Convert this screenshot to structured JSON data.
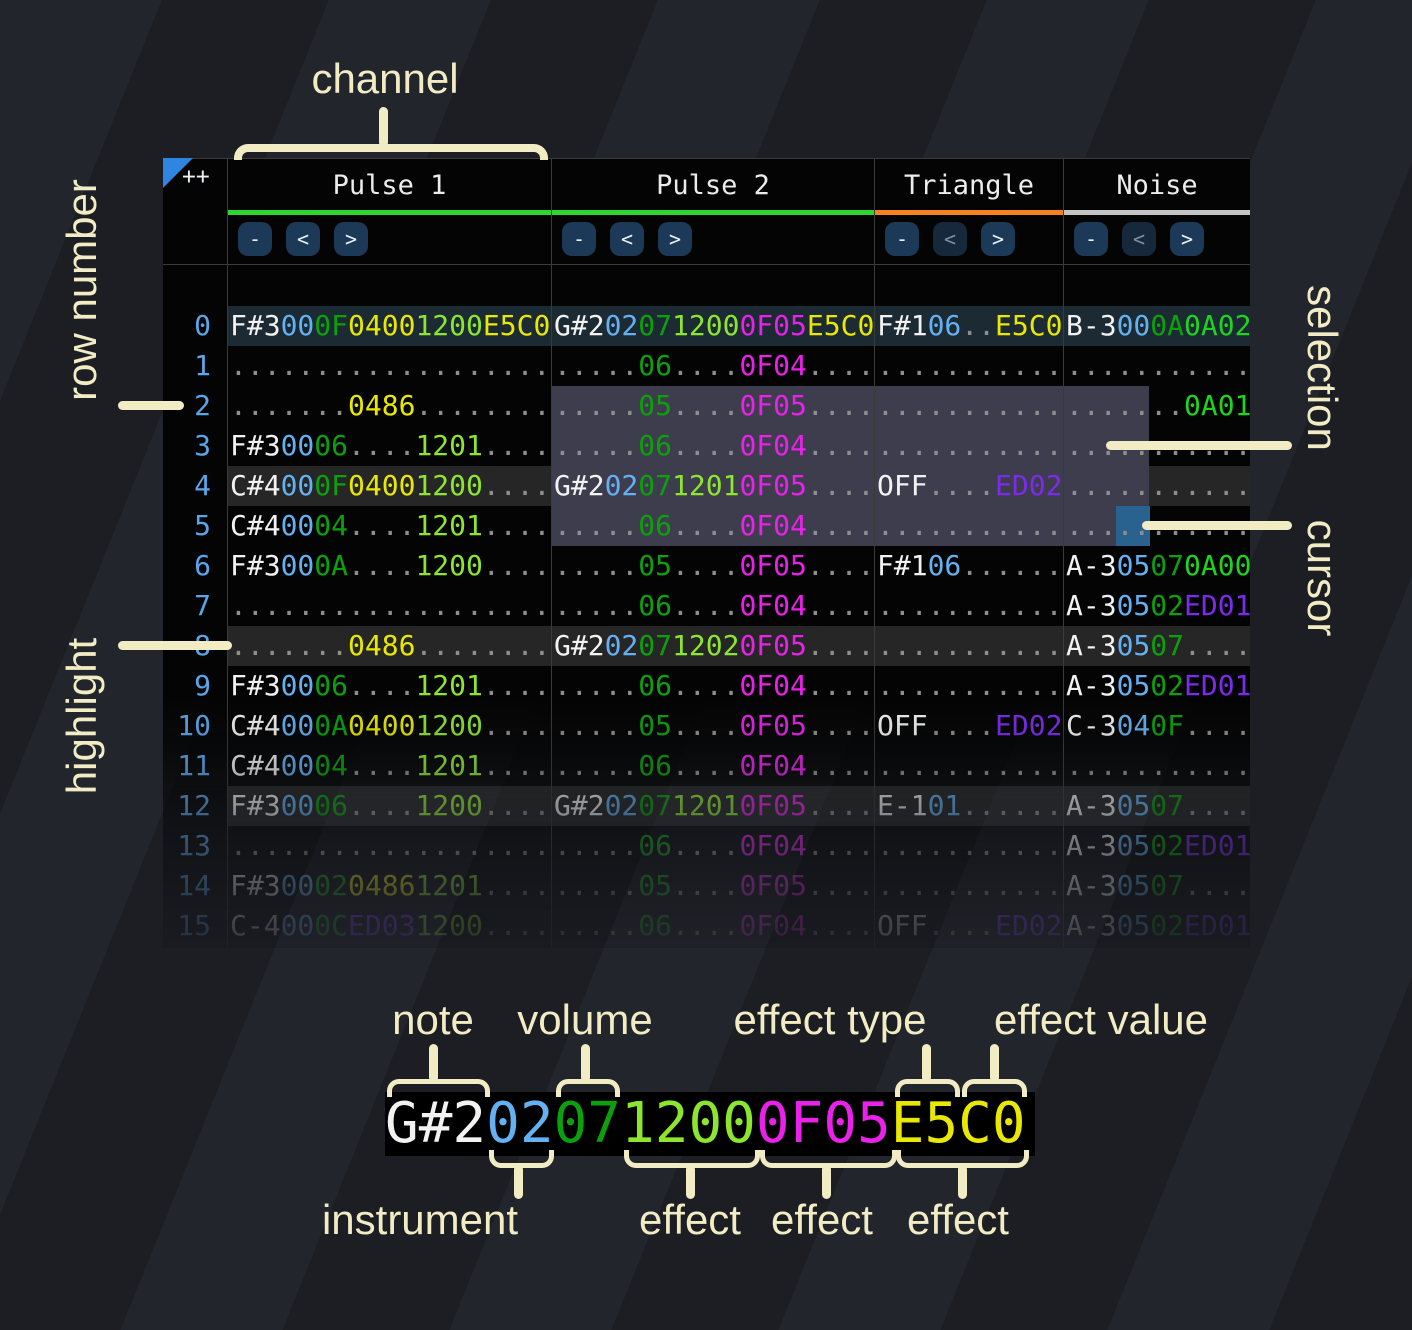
{
  "header": {
    "corner": "++",
    "channels": [
      {
        "name": "Pulse 1",
        "underline_color": "#2fd52f",
        "buttons": [
          {
            "label": "-",
            "dimmed": false
          },
          {
            "label": "<",
            "dimmed": false
          },
          {
            "label": ">",
            "dimmed": false
          }
        ]
      },
      {
        "name": "Pulse 2",
        "underline_color": "#2fd52f",
        "buttons": [
          {
            "label": "-",
            "dimmed": false
          },
          {
            "label": "<",
            "dimmed": false
          },
          {
            "label": ">",
            "dimmed": false
          }
        ]
      },
      {
        "name": "Triangle",
        "underline_color": "#f5821e",
        "buttons": [
          {
            "label": "-",
            "dimmed": false
          },
          {
            "label": "<",
            "dimmed": true
          },
          {
            "label": ">",
            "dimmed": false
          }
        ]
      },
      {
        "name": "Noise",
        "underline_color": "#c4c4c4",
        "buttons": [
          {
            "label": "-",
            "dimmed": false
          },
          {
            "label": "<",
            "dimmed": true
          },
          {
            "label": ">",
            "dimmed": false
          }
        ]
      }
    ]
  },
  "colors": {
    "note": "#f2f2f2",
    "inst": "#64b1f2",
    "vol": "#0ca00c",
    "fx_yellow": "#e8e800",
    "fx_lime": "#8ce62e",
    "fx_green": "#1ed41e",
    "fx_magenta": "#e822e8",
    "fx_purple": "#7c2beb",
    "dots": "#8e8e8e",
    "row_num": "#5aa6ea",
    "row_accent_bg": "#1c2a33",
    "row_highlight_bg": "#262626",
    "selection_bg": "#3d3d4e",
    "cursor_bg": "#2a628f",
    "button_bg": "#1c3a57",
    "button_fg": "#e9f1f7",
    "button_dim_bg": "#16293c",
    "button_dim_fg": "#7b92a4",
    "callout": "#f2ecc5",
    "corner_triangle": "#2e86e0"
  },
  "callouts": {
    "channel": "channel",
    "row_number": "row number",
    "selection": "selection",
    "cursor": "cursor",
    "highlight": "highlight",
    "note": "note",
    "volume": "volume",
    "effect_type": "effect type",
    "effect_value": "effect value",
    "instrument": "instrument",
    "effect_1": "effect",
    "effect_2": "effect",
    "effect_3": "effect"
  },
  "example": {
    "segments": [
      [
        "G#2",
        "note"
      ],
      [
        "02",
        "inst"
      ],
      [
        "07",
        "vol"
      ],
      [
        "1200",
        "fx_lime"
      ],
      [
        "0F05",
        "fx_magenta"
      ],
      [
        "E5C0",
        "fx_yellow"
      ]
    ]
  },
  "rows": [
    {
      "n": "0",
      "style": "accent",
      "p1": [
        [
          "F#3",
          "note"
        ],
        [
          "00",
          "inst"
        ],
        [
          "0F",
          "vol"
        ],
        [
          "0400",
          "fx_yellow"
        ],
        [
          "1200",
          "fx_lime"
        ],
        [
          "E5C0",
          "fx_yellow"
        ]
      ],
      "p2": [
        [
          "G#2",
          "note"
        ],
        [
          "02",
          "inst"
        ],
        [
          "07",
          "vol"
        ],
        [
          "1200",
          "fx_lime"
        ],
        [
          "0F05",
          "fx_magenta"
        ],
        [
          "E5C0",
          "fx_yellow"
        ]
      ],
      "tri": [
        [
          "F#1",
          "note"
        ],
        [
          "06",
          "inst"
        ],
        [
          "..",
          "dots"
        ],
        [
          "E5C0",
          "fx_yellow"
        ]
      ],
      "noi": [
        [
          "B-3",
          "note"
        ],
        [
          "00",
          "inst"
        ],
        [
          "0A",
          "vol"
        ],
        [
          "0A02",
          "fx_green"
        ]
      ]
    },
    {
      "n": "1",
      "style": null,
      "p1": [
        [
          "...................",
          "dots"
        ]
      ],
      "p2": [
        [
          ".....",
          "dots"
        ],
        [
          "06",
          "vol"
        ],
        [
          "....",
          "dots"
        ],
        [
          "0F04",
          "fx_magenta"
        ],
        [
          "....",
          "dots"
        ]
      ],
      "tri": [
        [
          "...........",
          "dots"
        ]
      ],
      "noi": [
        [
          "...........",
          "dots"
        ]
      ]
    },
    {
      "n": "2",
      "style": null,
      "p1": [
        [
          ".......",
          "dots"
        ],
        [
          "0486",
          "fx_yellow"
        ],
        [
          "........",
          "dots"
        ]
      ],
      "p2": [
        [
          ".....",
          "dots"
        ],
        [
          "05",
          "vol"
        ],
        [
          "....",
          "dots"
        ],
        [
          "0F05",
          "fx_magenta"
        ],
        [
          "....",
          "dots"
        ]
      ],
      "tri": [
        [
          "...........",
          "dots"
        ]
      ],
      "noi": [
        [
          ".......",
          "dots"
        ],
        [
          "0A01",
          "fx_green"
        ]
      ]
    },
    {
      "n": "3",
      "style": null,
      "p1": [
        [
          "F#3",
          "note"
        ],
        [
          "00",
          "inst"
        ],
        [
          "06",
          "vol"
        ],
        [
          "....",
          "dots"
        ],
        [
          "1201",
          "fx_lime"
        ],
        [
          "....",
          "dots"
        ]
      ],
      "p2": [
        [
          ".....",
          "dots"
        ],
        [
          "06",
          "vol"
        ],
        [
          "....",
          "dots"
        ],
        [
          "0F04",
          "fx_magenta"
        ],
        [
          "....",
          "dots"
        ]
      ],
      "tri": [
        [
          "...........",
          "dots"
        ]
      ],
      "noi": [
        [
          "...........",
          "dots"
        ]
      ]
    },
    {
      "n": "4",
      "style": "highlight",
      "p1": [
        [
          "C#4",
          "note"
        ],
        [
          "00",
          "inst"
        ],
        [
          "0F",
          "vol"
        ],
        [
          "0400",
          "fx_yellow"
        ],
        [
          "1200",
          "fx_lime"
        ],
        [
          "....",
          "dots"
        ]
      ],
      "p2": [
        [
          "G#2",
          "note"
        ],
        [
          "02",
          "inst"
        ],
        [
          "07",
          "vol"
        ],
        [
          "1201",
          "fx_lime"
        ],
        [
          "0F05",
          "fx_magenta"
        ],
        [
          "....",
          "dots"
        ]
      ],
      "tri": [
        [
          "OFF",
          "note"
        ],
        [
          "....",
          "dots"
        ],
        [
          "ED02",
          "fx_purple"
        ]
      ],
      "noi": [
        [
          "...........",
          "dots"
        ]
      ]
    },
    {
      "n": "5",
      "style": null,
      "p1": [
        [
          "C#4",
          "note"
        ],
        [
          "00",
          "inst"
        ],
        [
          "04",
          "vol"
        ],
        [
          "....",
          "dots"
        ],
        [
          "1201",
          "fx_lime"
        ],
        [
          "....",
          "dots"
        ]
      ],
      "p2": [
        [
          ".....",
          "dots"
        ],
        [
          "06",
          "vol"
        ],
        [
          "....",
          "dots"
        ],
        [
          "0F04",
          "fx_magenta"
        ],
        [
          "....",
          "dots"
        ]
      ],
      "tri": [
        [
          "...........",
          "dots"
        ]
      ],
      "noi": [
        [
          "...........",
          "dots"
        ]
      ]
    },
    {
      "n": "6",
      "style": null,
      "p1": [
        [
          "F#3",
          "note"
        ],
        [
          "00",
          "inst"
        ],
        [
          "0A",
          "vol"
        ],
        [
          "....",
          "dots"
        ],
        [
          "1200",
          "fx_lime"
        ],
        [
          "....",
          "dots"
        ]
      ],
      "p2": [
        [
          ".....",
          "dots"
        ],
        [
          "05",
          "vol"
        ],
        [
          "....",
          "dots"
        ],
        [
          "0F05",
          "fx_magenta"
        ],
        [
          "....",
          "dots"
        ]
      ],
      "tri": [
        [
          "F#1",
          "note"
        ],
        [
          "06",
          "inst"
        ],
        [
          "......",
          "dots"
        ]
      ],
      "noi": [
        [
          "A-3",
          "note"
        ],
        [
          "05",
          "inst"
        ],
        [
          "07",
          "vol"
        ],
        [
          "0A00",
          "fx_green"
        ]
      ]
    },
    {
      "n": "7",
      "style": null,
      "p1": [
        [
          "...................",
          "dots"
        ]
      ],
      "p2": [
        [
          ".....",
          "dots"
        ],
        [
          "06",
          "vol"
        ],
        [
          "....",
          "dots"
        ],
        [
          "0F04",
          "fx_magenta"
        ],
        [
          "....",
          "dots"
        ]
      ],
      "tri": [
        [
          "...........",
          "dots"
        ]
      ],
      "noi": [
        [
          "A-3",
          "note"
        ],
        [
          "05",
          "inst"
        ],
        [
          "02",
          "vol"
        ],
        [
          "ED01",
          "fx_purple"
        ]
      ]
    },
    {
      "n": "8",
      "style": "highlight",
      "p1": [
        [
          ".......",
          "dots"
        ],
        [
          "0486",
          "fx_yellow"
        ],
        [
          "........",
          "dots"
        ]
      ],
      "p2": [
        [
          "G#2",
          "note"
        ],
        [
          "02",
          "inst"
        ],
        [
          "07",
          "vol"
        ],
        [
          "1202",
          "fx_lime"
        ],
        [
          "0F05",
          "fx_magenta"
        ],
        [
          "....",
          "dots"
        ]
      ],
      "tri": [
        [
          "...........",
          "dots"
        ]
      ],
      "noi": [
        [
          "A-3",
          "note"
        ],
        [
          "05",
          "inst"
        ],
        [
          "07",
          "vol"
        ],
        [
          "....",
          "dots"
        ]
      ]
    },
    {
      "n": "9",
      "style": null,
      "p1": [
        [
          "F#3",
          "note"
        ],
        [
          "00",
          "inst"
        ],
        [
          "06",
          "vol"
        ],
        [
          "....",
          "dots"
        ],
        [
          "1201",
          "fx_lime"
        ],
        [
          "....",
          "dots"
        ]
      ],
      "p2": [
        [
          ".....",
          "dots"
        ],
        [
          "06",
          "vol"
        ],
        [
          "....",
          "dots"
        ],
        [
          "0F04",
          "fx_magenta"
        ],
        [
          "....",
          "dots"
        ]
      ],
      "tri": [
        [
          "...........",
          "dots"
        ]
      ],
      "noi": [
        [
          "A-3",
          "note"
        ],
        [
          "05",
          "inst"
        ],
        [
          "02",
          "vol"
        ],
        [
          "ED01",
          "fx_purple"
        ]
      ]
    },
    {
      "n": "10",
      "style": null,
      "p1": [
        [
          "C#4",
          "note"
        ],
        [
          "00",
          "inst"
        ],
        [
          "0A",
          "vol"
        ],
        [
          "0400",
          "fx_yellow"
        ],
        [
          "1200",
          "fx_lime"
        ],
        [
          "....",
          "dots"
        ]
      ],
      "p2": [
        [
          ".....",
          "dots"
        ],
        [
          "05",
          "vol"
        ],
        [
          "....",
          "dots"
        ],
        [
          "0F05",
          "fx_magenta"
        ],
        [
          "....",
          "dots"
        ]
      ],
      "tri": [
        [
          "OFF",
          "note"
        ],
        [
          "....",
          "dots"
        ],
        [
          "ED02",
          "fx_purple"
        ]
      ],
      "noi": [
        [
          "C-3",
          "note"
        ],
        [
          "04",
          "inst"
        ],
        [
          "0F",
          "vol"
        ],
        [
          "....",
          "dots"
        ]
      ]
    },
    {
      "n": "11",
      "style": null,
      "p1": [
        [
          "C#4",
          "note"
        ],
        [
          "00",
          "inst"
        ],
        [
          "04",
          "vol"
        ],
        [
          "....",
          "dots"
        ],
        [
          "1201",
          "fx_lime"
        ],
        [
          "....",
          "dots"
        ]
      ],
      "p2": [
        [
          ".....",
          "dots"
        ],
        [
          "06",
          "vol"
        ],
        [
          "....",
          "dots"
        ],
        [
          "0F04",
          "fx_magenta"
        ],
        [
          "....",
          "dots"
        ]
      ],
      "tri": [
        [
          "...........",
          "dots"
        ]
      ],
      "noi": [
        [
          "...........",
          "dots"
        ]
      ]
    },
    {
      "n": "12",
      "style": "highlight",
      "p1": [
        [
          "F#3",
          "note"
        ],
        [
          "00",
          "inst"
        ],
        [
          "06",
          "vol"
        ],
        [
          "....",
          "dots"
        ],
        [
          "1200",
          "fx_lime"
        ],
        [
          "....",
          "dots"
        ]
      ],
      "p2": [
        [
          "G#2",
          "note"
        ],
        [
          "02",
          "inst"
        ],
        [
          "07",
          "vol"
        ],
        [
          "1201",
          "fx_lime"
        ],
        [
          "0F05",
          "fx_magenta"
        ],
        [
          "....",
          "dots"
        ]
      ],
      "tri": [
        [
          "E-1",
          "note"
        ],
        [
          "01",
          "inst"
        ],
        [
          "......",
          "dots"
        ]
      ],
      "noi": [
        [
          "A-3",
          "note"
        ],
        [
          "05",
          "inst"
        ],
        [
          "07",
          "vol"
        ],
        [
          "....",
          "dots"
        ]
      ]
    },
    {
      "n": "13",
      "style": null,
      "p1": [
        [
          "...................",
          "dots"
        ]
      ],
      "p2": [
        [
          ".....",
          "dots"
        ],
        [
          "06",
          "vol"
        ],
        [
          "....",
          "dots"
        ],
        [
          "0F04",
          "fx_magenta"
        ],
        [
          "....",
          "dots"
        ]
      ],
      "tri": [
        [
          "...........",
          "dots"
        ]
      ],
      "noi": [
        [
          "A-3",
          "note"
        ],
        [
          "05",
          "inst"
        ],
        [
          "02",
          "vol"
        ],
        [
          "ED01",
          "fx_purple"
        ]
      ]
    },
    {
      "n": "14",
      "style": null,
      "p1": [
        [
          "F#3",
          "note"
        ],
        [
          "00",
          "inst"
        ],
        [
          "02",
          "vol"
        ],
        [
          "0486",
          "fx_yellow"
        ],
        [
          "1201",
          "fx_lime"
        ],
        [
          "....",
          "dots"
        ]
      ],
      "p2": [
        [
          ".....",
          "dots"
        ],
        [
          "05",
          "vol"
        ],
        [
          "....",
          "dots"
        ],
        [
          "0F05",
          "fx_magenta"
        ],
        [
          "....",
          "dots"
        ]
      ],
      "tri": [
        [
          "...........",
          "dots"
        ]
      ],
      "noi": [
        [
          "A-3",
          "note"
        ],
        [
          "05",
          "inst"
        ],
        [
          "07",
          "vol"
        ],
        [
          "....",
          "dots"
        ]
      ]
    },
    {
      "n": "15",
      "style": null,
      "p1": [
        [
          "C-4",
          "note"
        ],
        [
          "00",
          "inst"
        ],
        [
          "0C",
          "vol"
        ],
        [
          "ED03",
          "fx_purple"
        ],
        [
          "1200",
          "fx_lime"
        ],
        [
          "....",
          "dots"
        ]
      ],
      "p2": [
        [
          ".....",
          "dots"
        ],
        [
          "06",
          "vol"
        ],
        [
          "....",
          "dots"
        ],
        [
          "0F04",
          "fx_magenta"
        ],
        [
          "....",
          "dots"
        ]
      ],
      "tri": [
        [
          "OFF",
          "note"
        ],
        [
          "....",
          "dots"
        ],
        [
          "ED02",
          "fx_purple"
        ]
      ],
      "noi": [
        [
          "A-3",
          "note"
        ],
        [
          "05",
          "inst"
        ],
        [
          "02",
          "vol"
        ],
        [
          "ED01",
          "fx_purple"
        ]
      ]
    }
  ]
}
